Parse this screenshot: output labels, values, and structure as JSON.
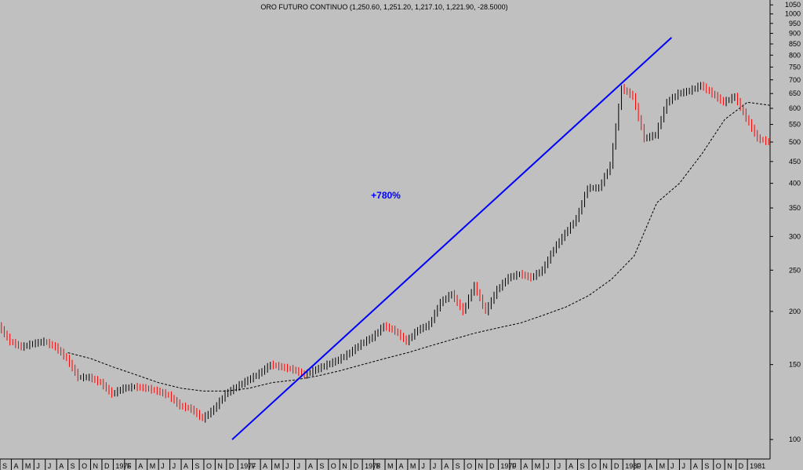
{
  "title": "ORO FUTURO CONTINUO (1,250.60, 1,251.20, 1,217.10, 1,221.90, -28.5000)",
  "annotation": "+780%",
  "colors": {
    "background": "#c0c0c0",
    "up": "#000000",
    "down": "#ff0000",
    "trendline": "#0000ff",
    "moving_average": "#000000"
  },
  "chart_data": {
    "type": "line",
    "title": "ORO FUTURO CONTINUO (1,250.60, 1,251.20, 1,217.10, 1,221.90, -28.5000)",
    "y_scale": "log",
    "ylim": [
      90,
      1060
    ],
    "y_ticks": [
      100,
      150,
      200,
      250,
      300,
      350,
      400,
      450,
      500,
      550,
      600,
      650,
      700,
      750,
      800,
      850,
      900,
      950,
      1000,
      1050
    ],
    "x_tick_labels": [
      "S",
      "A",
      "M",
      "J",
      "J",
      "A",
      "S",
      "O",
      "N",
      "D",
      "1976",
      "F",
      "A",
      "M",
      "J",
      "J",
      "A",
      "S",
      "O",
      "N",
      "D",
      "1977",
      "F",
      "A",
      "M",
      "J",
      "J",
      "A",
      "S",
      "O",
      "N",
      "D",
      "1978",
      "F",
      "M",
      "A",
      "M",
      "J",
      "J",
      "A",
      "S",
      "O",
      "N",
      "D",
      "1979",
      "F",
      "A",
      "M",
      "J",
      "J",
      "A",
      "S",
      "O",
      "N",
      "D",
      "1980",
      "F",
      "A",
      "M",
      "J",
      "J",
      "A",
      "S",
      "O",
      "N",
      "D",
      "1981"
    ],
    "x_month_range": [
      -4,
      64
    ],
    "series": [
      {
        "x": [
          -4,
          -3,
          -2,
          -1,
          0,
          1,
          2,
          3,
          4,
          5,
          6,
          7,
          8,
          9,
          10,
          11,
          12,
          13,
          14,
          15,
          16,
          17,
          18,
          19,
          20,
          21,
          22,
          23,
          24,
          25,
          26,
          27,
          28,
          29,
          30,
          31,
          32,
          33,
          34,
          35,
          36,
          37,
          38,
          39,
          40,
          41,
          42,
          43,
          44,
          45,
          46,
          47,
          48,
          49,
          50,
          51,
          52,
          53,
          54,
          55,
          56,
          57,
          58,
          59,
          60,
          61,
          62,
          63,
          64
        ],
        "values": [
          185,
          170,
          165,
          168,
          170,
          165,
          155,
          140,
          140,
          136,
          128,
          132,
          133,
          132,
          130,
          127,
          120,
          118,
          112,
          118,
          128,
          133,
          138,
          143,
          150,
          148,
          146,
          142,
          146,
          150,
          154,
          160,
          168,
          174,
          185,
          180,
          170,
          181,
          186,
          210,
          220,
          200,
          230,
          200,
          225,
          240,
          245,
          240,
          250,
          280,
          305,
          330,
          390,
          390,
          440,
          670,
          640,
          510,
          520,
          620,
          650,
          660,
          680,
          650,
          620,
          640,
          570,
          510,
          500
        ]
      },
      {
        "x": [
          2,
          4,
          6,
          8,
          10,
          12,
          14,
          16,
          18,
          20,
          22,
          24,
          26,
          28,
          30,
          32,
          34,
          36,
          38,
          40,
          42,
          44,
          46,
          48,
          50,
          52,
          54,
          56,
          58,
          60,
          62,
          64
        ],
        "values": [
          160,
          155,
          148,
          142,
          136,
          132,
          130,
          130,
          132,
          136,
          138,
          141,
          145,
          150,
          155,
          160,
          166,
          172,
          178,
          183,
          188,
          196,
          205,
          218,
          238,
          270,
          360,
          400,
          470,
          565,
          620,
          610
        ]
      }
    ],
    "trendline": {
      "from": {
        "x": 16.5,
        "y": 100
      },
      "to": {
        "x": 55.3,
        "y": 880
      }
    }
  }
}
